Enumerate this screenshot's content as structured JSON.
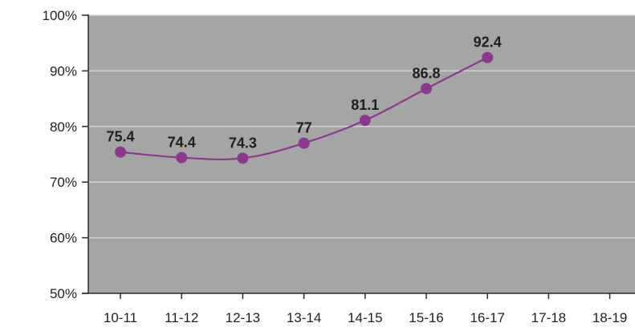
{
  "chart_data": {
    "type": "line",
    "title": "",
    "xlabel": "",
    "ylabel": "",
    "categories": [
      "10-11",
      "11-12",
      "12-13",
      "13-14",
      "14-15",
      "15-16",
      "16-17",
      "17-18",
      "18-19"
    ],
    "series": [
      {
        "values": [
          75.4,
          74.4,
          74.3,
          77,
          81.1,
          86.8,
          92.4,
          null,
          null
        ],
        "data_labels": [
          "75.4",
          "74.4",
          "74.3",
          "77",
          "81.1",
          "86.8",
          "92.4",
          "",
          ""
        ],
        "color": "#8b3a8b"
      }
    ],
    "ylim": [
      50,
      100
    ],
    "yticks": [
      50,
      60,
      70,
      80,
      90,
      100
    ],
    "ytick_labels": [
      "50%",
      "60%",
      "70%",
      "80%",
      "90%",
      "100%"
    ],
    "grid": true,
    "legend": "none",
    "colors": {
      "plot_background": "#a5a5a5",
      "gridline": "#d4d4d4",
      "axis": "#2a2a2a",
      "line": "#8b3a8b",
      "marker": "#8b3a8b"
    }
  }
}
